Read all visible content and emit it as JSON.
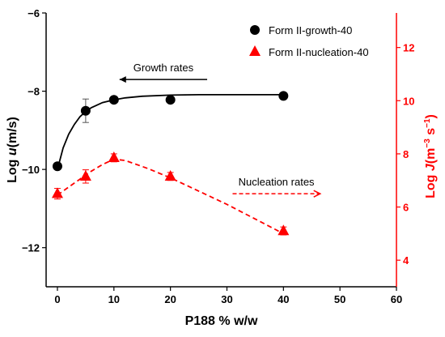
{
  "chart_data": {
    "type": "scatter",
    "x_label": "P188 % w/w",
    "y_label_left": {
      "prefix": "Log ",
      "italic": "u",
      "suffix": "(m/s)"
    },
    "y_label_right": {
      "prefix": "Log ",
      "italic": "J",
      "unit_open": "(m",
      "exp1": "−3",
      "unit_mid": " s",
      "exp2": "−1",
      "unit_close": ")"
    },
    "xlim": [
      -2,
      60
    ],
    "ylim_left": [
      -13,
      -6
    ],
    "ylim_right": [
      3,
      13.3
    ],
    "x_ticks": [
      0,
      10,
      20,
      30,
      40,
      50,
      60
    ],
    "y_ticks_left": [
      -12,
      -10,
      -8,
      -6
    ],
    "y_ticks_right": [
      4,
      6,
      8,
      10,
      12
    ],
    "colors": {
      "growth": "#000000",
      "nucleation": "#ff0000"
    },
    "series": [
      {
        "name": "Form II-growth-40",
        "axis": "left",
        "marker": "circle",
        "x": [
          0,
          5,
          10,
          20,
          40
        ],
        "y": [
          -9.92,
          -8.5,
          -8.22,
          -8.22,
          -8.12
        ],
        "err": [
          0,
          0.3,
          0,
          0,
          0
        ]
      },
      {
        "name": "Form II-nucleation-40",
        "axis": "right",
        "marker": "triangle",
        "x": [
          0,
          5,
          10,
          20,
          40
        ],
        "y": [
          6.5,
          7.15,
          7.85,
          7.15,
          5.1
        ],
        "err": [
          0.2,
          0.25,
          0.15,
          0.15,
          0.15
        ]
      }
    ],
    "fit_lines": [
      {
        "series": "Form II-growth-40",
        "style": "solid",
        "x": [
          0,
          1,
          2,
          3,
          4,
          5,
          6,
          8,
          10,
          12,
          15,
          20,
          25,
          30,
          35,
          40
        ],
        "y": [
          -10.0,
          -9.45,
          -9.1,
          -8.85,
          -8.65,
          -8.52,
          -8.42,
          -8.29,
          -8.22,
          -8.17,
          -8.13,
          -8.1,
          -8.09,
          -8.09,
          -8.09,
          -8.09
        ]
      },
      {
        "series": "Form II-nucleation-40",
        "style": "dashed",
        "x": [
          0,
          2,
          4,
          6,
          8,
          10,
          12,
          14,
          16,
          20,
          25,
          30,
          35,
          40
        ],
        "y": [
          6.45,
          6.75,
          7.05,
          7.35,
          7.6,
          7.8,
          7.75,
          7.6,
          7.45,
          7.1,
          6.6,
          6.1,
          5.55,
          5.0
        ]
      }
    ],
    "annotations": [
      {
        "text": "Growth rates",
        "arrow": "left",
        "color": "#000000",
        "x_from": 26.5,
        "x_to": 11,
        "y": -7.7,
        "axis": "left"
      },
      {
        "text": "Nucleation rates",
        "arrow": "right",
        "color": "#ff0000",
        "x_from": 31,
        "x_to": 46.5,
        "y": 6.5,
        "axis": "right"
      }
    ],
    "legend_position": "top-right"
  }
}
